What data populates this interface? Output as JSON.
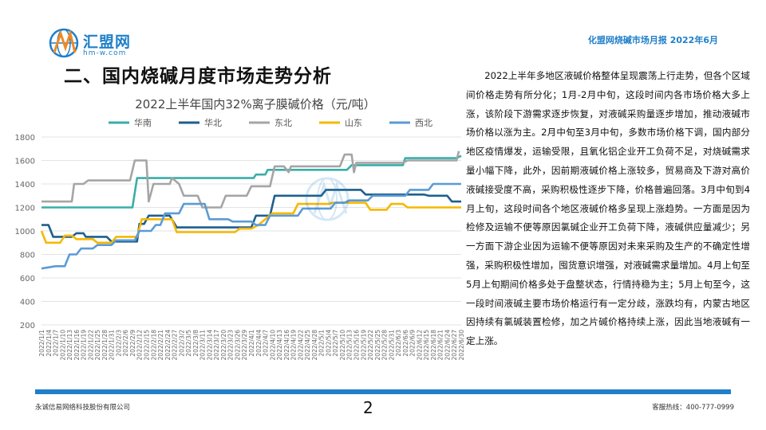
{
  "header": {
    "logo_text": "汇盟网",
    "logo_url": "hm-w.com",
    "report_title": "化盟网烧碱市场月报   2022年6月"
  },
  "section_title": "二、国内烧碱月度市场走势分析",
  "paragraph": "2022上半年多地区液碱价格整体呈现震荡上行走势，但各个区域间价格走势有所分化；1月-2月中旬，这段时间内各市场价格大多上涨，该阶段下游需求逐步恢复，对液碱采购量逐步增加，推动液碱市场价格以涨为主。2月中旬至3月中旬，多数市场价格下调，国内部分地区疫情爆发，运输受限，且氧化铝企业开工负荷不足，对烧碱需求量小幅下降，此外，因前期液碱价格上涨较多，贸易商及下游对高价液碱接受度不高，采购积极性逐步下降，价格普遍回落。3月中旬到4月上旬，这段时间各个地区液碱价格多呈现上涨趋势。一方面是因为检修及运输不便等原因氯碱企业开工负荷下降，液碱供应量减少；另一方面下游企业因为运输不便等原因对未来采购及生产的不确定性增强，采购积极性增加，囤货意识增强，对液碱需求量增加。4月上旬至5月上旬期间价格多处于盘整状态，行情持稳为主；5月上旬至今，这一段时间液碱主要市场价格运行有一定分歧，涨跌均有，内蒙古地区因持续有氯碱装置检修，加之片碱价格持续上涨，因此当地液碱有一定上涨。",
  "footer": {
    "company": "永诚信易网络科技股份有限公司",
    "page": "2",
    "hotline": "客服热线：400-777-0999"
  },
  "chart_data": {
    "type": "line",
    "title": "2022上半年国内32%离子膜碱价格（元/吨）",
    "ylim": [
      200,
      1800
    ],
    "yticks": [
      200,
      400,
      600,
      800,
      1000,
      1200,
      1400,
      1600,
      1800
    ],
    "grid": true,
    "legend_position": "top",
    "x_labels": [
      "2022/1/1",
      "2022/1/4",
      "2022/1/7",
      "2022/1/10",
      "2022/1/13",
      "2022/1/16",
      "2022/1/19",
      "2022/1/22",
      "2022/1/25",
      "2022/1/28",
      "2022/1/31",
      "2022/2/3",
      "2022/2/6",
      "2022/2/9",
      "2022/2/12",
      "2022/2/15",
      "2022/2/18",
      "2022/2/21",
      "2022/2/24",
      "2022/2/27",
      "2022/3/2",
      "2022/3/5",
      "2022/3/8",
      "2022/3/11",
      "2022/3/14",
      "2022/3/17",
      "2022/3/20",
      "2022/3/23",
      "2022/3/26",
      "2022/3/29",
      "2022/4/1",
      "2022/4/4",
      "2022/4/7",
      "2022/4/10",
      "2022/4/13",
      "2022/4/16",
      "2022/4/19",
      "2022/4/22",
      "2022/4/25",
      "2022/4/28",
      "2022/5/1",
      "2022/5/4",
      "2022/5/7",
      "2022/5/10",
      "2022/5/13",
      "2022/5/16",
      "2022/5/19",
      "2022/5/22",
      "2022/5/25",
      "2022/5/28",
      "2022/5/31",
      "2022/6/3",
      "2022/6/6",
      "2022/6/9",
      "2022/6/12",
      "2022/6/15",
      "2022/6/18",
      "2022/6/21",
      "2022/6/24",
      "2022/6/27",
      "2022/6/30"
    ],
    "x_range": [
      0,
      180
    ],
    "series": [
      {
        "name": "华南",
        "color": "#3aada8",
        "points": [
          [
            0,
            1200
          ],
          [
            39,
            1200
          ],
          [
            41,
            1450
          ],
          [
            91,
            1450
          ],
          [
            92,
            1480
          ],
          [
            96,
            1480
          ],
          [
            97,
            1520
          ],
          [
            131,
            1520
          ],
          [
            133,
            1560
          ],
          [
            155,
            1560
          ],
          [
            156,
            1620
          ],
          [
            178,
            1620
          ],
          [
            180,
            1640
          ]
        ]
      },
      {
        "name": "华北",
        "color": "#1f5f8b",
        "points": [
          [
            0,
            1050
          ],
          [
            3,
            1050
          ],
          [
            5,
            950
          ],
          [
            13,
            950
          ],
          [
            15,
            980
          ],
          [
            18,
            980
          ],
          [
            19,
            950
          ],
          [
            28,
            950
          ],
          [
            30,
            910
          ],
          [
            41,
            910
          ],
          [
            42,
            1060
          ],
          [
            44,
            1060
          ],
          [
            46,
            1130
          ],
          [
            55,
            1130
          ],
          [
            58,
            1030
          ],
          [
            90,
            1030
          ],
          [
            92,
            1130
          ],
          [
            98,
            1130
          ],
          [
            100,
            1300
          ],
          [
            120,
            1300
          ],
          [
            122,
            1350
          ],
          [
            137,
            1350
          ],
          [
            139,
            1310
          ],
          [
            164,
            1310
          ],
          [
            166,
            1300
          ],
          [
            174,
            1300
          ],
          [
            176,
            1250
          ],
          [
            180,
            1250
          ]
        ]
      },
      {
        "name": "东北",
        "color": "#a5a5a5",
        "points": [
          [
            0,
            1250
          ],
          [
            13,
            1250
          ],
          [
            14,
            1400
          ],
          [
            18,
            1400
          ],
          [
            20,
            1430
          ],
          [
            38,
            1430
          ],
          [
            40,
            1600
          ],
          [
            45,
            1600
          ],
          [
            46,
            1250
          ],
          [
            48,
            1400
          ],
          [
            55,
            1400
          ],
          [
            56,
            1450
          ],
          [
            59,
            1400
          ],
          [
            61,
            1300
          ],
          [
            67,
            1300
          ],
          [
            69,
            1200
          ],
          [
            77,
            1200
          ],
          [
            79,
            1300
          ],
          [
            88,
            1300
          ],
          [
            90,
            1380
          ],
          [
            98,
            1380
          ],
          [
            100,
            1550
          ],
          [
            104,
            1550
          ],
          [
            106,
            1500
          ],
          [
            107,
            1550
          ],
          [
            128,
            1550
          ],
          [
            130,
            1650
          ],
          [
            133,
            1650
          ],
          [
            134,
            1500
          ],
          [
            135,
            1580
          ],
          [
            155,
            1580
          ],
          [
            157,
            1600
          ],
          [
            178,
            1600
          ],
          [
            179,
            1680
          ]
        ]
      },
      {
        "name": "山东",
        "color": "#f5b800",
        "points": [
          [
            0,
            1000
          ],
          [
            2,
            900
          ],
          [
            8,
            900
          ],
          [
            10,
            960
          ],
          [
            13,
            960
          ],
          [
            15,
            930
          ],
          [
            22,
            930
          ],
          [
            24,
            900
          ],
          [
            30,
            900
          ],
          [
            32,
            950
          ],
          [
            41,
            950
          ],
          [
            43,
            1100
          ],
          [
            56,
            1100
          ],
          [
            58,
            990
          ],
          [
            83,
            990
          ],
          [
            85,
            1020
          ],
          [
            90,
            1020
          ],
          [
            93,
            1050
          ],
          [
            99,
            1150
          ],
          [
            108,
            1150
          ],
          [
            110,
            1230
          ],
          [
            123,
            1230
          ],
          [
            125,
            1240
          ],
          [
            139,
            1240
          ],
          [
            141,
            1180
          ],
          [
            148,
            1180
          ],
          [
            150,
            1230
          ],
          [
            155,
            1230
          ],
          [
            157,
            1200
          ],
          [
            180,
            1200
          ]
        ]
      },
      {
        "name": "西北",
        "color": "#5b9bd5",
        "points": [
          [
            0,
            680
          ],
          [
            6,
            700
          ],
          [
            10,
            700
          ],
          [
            12,
            800
          ],
          [
            15,
            800
          ],
          [
            17,
            850
          ],
          [
            22,
            850
          ],
          [
            24,
            880
          ],
          [
            30,
            880
          ],
          [
            32,
            920
          ],
          [
            40,
            920
          ],
          [
            42,
            1000
          ],
          [
            47,
            1000
          ],
          [
            49,
            1050
          ],
          [
            51,
            1050
          ],
          [
            53,
            1150
          ],
          [
            59,
            1150
          ],
          [
            61,
            1230
          ],
          [
            70,
            1230
          ],
          [
            72,
            1100
          ],
          [
            80,
            1100
          ],
          [
            82,
            1080
          ],
          [
            90,
            1080
          ],
          [
            92,
            1050
          ],
          [
            96,
            1050
          ],
          [
            98,
            1130
          ],
          [
            110,
            1130
          ],
          [
            112,
            1190
          ],
          [
            124,
            1190
          ],
          [
            126,
            1240
          ],
          [
            130,
            1240
          ],
          [
            132,
            1260
          ],
          [
            140,
            1260
          ],
          [
            142,
            1300
          ],
          [
            156,
            1300
          ],
          [
            158,
            1350
          ],
          [
            166,
            1350
          ],
          [
            168,
            1400
          ],
          [
            180,
            1400
          ]
        ]
      }
    ]
  }
}
